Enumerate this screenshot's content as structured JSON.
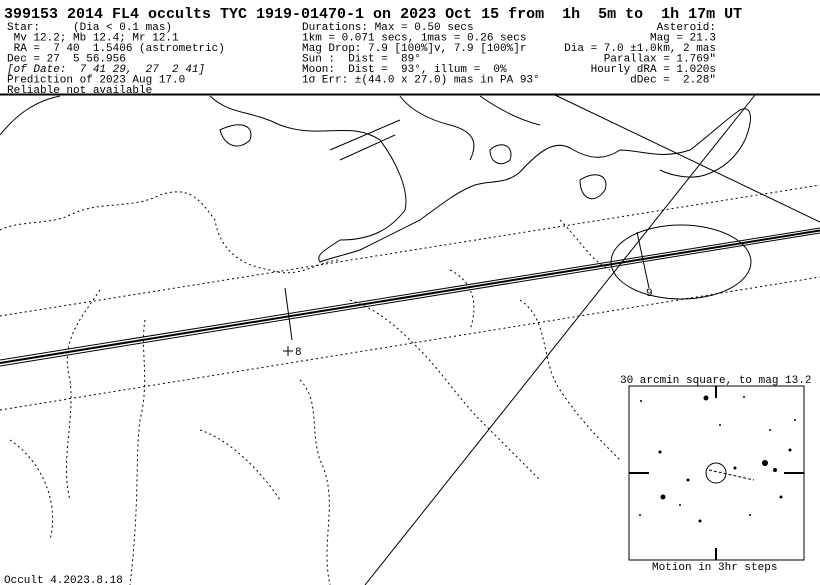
{
  "header": {
    "title": "399153 2014 FL4 occults TYC 1919-01470-1 on 2023 Oct 15 from  1h  5m to  1h 17m UT",
    "star": [
      "Star:     (Dia < 0.1 mas)",
      " Mv 12.2; Mb 12.4; Mr 12.1",
      " RA =  7 40  1.5406 (astrometric)",
      "Dec = 27  5 56.956",
      "[of Date:  7 41 29,  27  2 41]",
      "Prediction of 2023 Aug 17.0",
      "Reliable not available"
    ],
    "event": [
      "Durations: Max = 0.50 secs",
      "1km = 0.071 secs, 1mas = 0.26 secs",
      "Mag Drop: 7.9 [100%]v, 7.9 [100%]r",
      "Sun :  Dist =  89°",
      "Moon:  Dist =  93°, illum =  0%",
      "1σ Err: ±(44.0 x 27.0) mas in PA 93°"
    ],
    "asteroid": [
      "Asteroid:",
      "Mag = 21.3",
      "Dia = 7.0 ±1.0km, 2 mas",
      "Parallax = 1.769\"",
      "Hourly dRA = 1.020s",
      "dDec =  2.28\""
    ]
  },
  "map": {
    "markers": [
      "8",
      "9"
    ]
  },
  "star_chart": {
    "title": "30 arcmin square, to mag 13.2",
    "caption": "Motion in 3hr steps"
  },
  "footer": "Occult 4.2023.8.18"
}
